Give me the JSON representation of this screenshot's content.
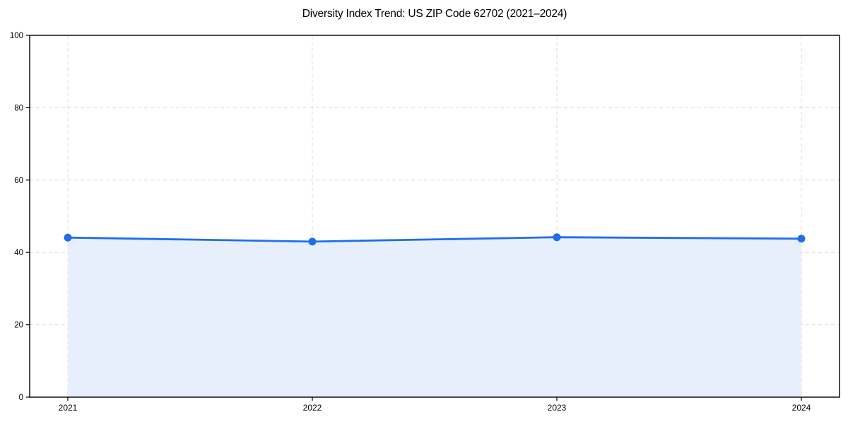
{
  "figure": {
    "background": "#ffffff"
  },
  "chart_data": {
    "type": "area",
    "title": "Diversity Index Trend: US ZIP Code 62702 (2021–2024)",
    "categories": [
      "2021",
      "2022",
      "2023",
      "2024"
    ],
    "values": [
      44.1,
      43.0,
      44.2,
      43.8
    ],
    "ylim": [
      0,
      100
    ],
    "yticks": [
      0,
      20,
      40,
      60,
      80,
      100
    ],
    "xlabel": "",
    "ylabel": "",
    "legend_position": "none",
    "grid": {
      "show": true,
      "style": "dashed"
    },
    "colors": {
      "line": "#1f6feb",
      "marker": "#1f6feb",
      "area_fill": "#e8effc",
      "grid": "#dcdcdc",
      "axis": "#000000",
      "text": "#000000",
      "background": "#ffffff"
    }
  }
}
